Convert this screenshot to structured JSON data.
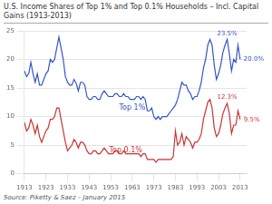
{
  "chart_data": {
    "type": "line",
    "title": "U.S. Income Shares of Top 1% and Top 0.1% Households – Incl. Capital Gains (1913-2013)",
    "x": [
      1913,
      1914,
      1915,
      1916,
      1917,
      1918,
      1919,
      1920,
      1921,
      1922,
      1923,
      1924,
      1925,
      1926,
      1927,
      1928,
      1929,
      1930,
      1931,
      1932,
      1933,
      1934,
      1935,
      1936,
      1937,
      1938,
      1939,
      1940,
      1941,
      1942,
      1943,
      1944,
      1945,
      1946,
      1947,
      1948,
      1949,
      1950,
      1951,
      1952,
      1953,
      1954,
      1955,
      1956,
      1957,
      1958,
      1959,
      1960,
      1961,
      1962,
      1963,
      1964,
      1965,
      1966,
      1967,
      1968,
      1969,
      1970,
      1971,
      1972,
      1973,
      1974,
      1975,
      1976,
      1977,
      1978,
      1979,
      1980,
      1981,
      1982,
      1983,
      1984,
      1985,
      1986,
      1987,
      1988,
      1989,
      1990,
      1991,
      1992,
      1993,
      1994,
      1995,
      1996,
      1997,
      1998,
      1999,
      2000,
      2001,
      2002,
      2003,
      2004,
      2005,
      2006,
      2007,
      2008,
      2009,
      2010,
      2011,
      2012,
      2013
    ],
    "series": [
      {
        "name": "Top 1%",
        "color": "#3355cc",
        "values": [
          18.0,
          17.0,
          17.5,
          19.5,
          17.5,
          16.0,
          17.5,
          15.5,
          15.5,
          16.5,
          17.5,
          18.0,
          20.0,
          19.5,
          20.0,
          22.0,
          23.9,
          22.0,
          20.0,
          17.0,
          16.0,
          15.5,
          15.5,
          16.5,
          15.8,
          14.5,
          16.0,
          16.0,
          15.5,
          13.5,
          13.0,
          13.0,
          13.5,
          13.5,
          13.0,
          13.0,
          14.0,
          14.5,
          14.0,
          13.5,
          13.5,
          13.5,
          14.0,
          14.0,
          13.5,
          13.5,
          14.0,
          13.5,
          13.5,
          13.0,
          13.0,
          13.0,
          13.5,
          13.5,
          13.0,
          13.5,
          13.0,
          11.0,
          11.0,
          11.5,
          10.0,
          9.5,
          10.0,
          9.5,
          10.0,
          10.0,
          10.0,
          10.5,
          11.0,
          11.5,
          12.0,
          13.0,
          14.5,
          16.0,
          15.5,
          15.5,
          14.5,
          14.0,
          13.0,
          13.5,
          13.5,
          14.5,
          16.0,
          18.5,
          20.0,
          22.5,
          23.5,
          22.5,
          19.0,
          16.5,
          17.5,
          19.0,
          21.2,
          22.5,
          23.5,
          21.0,
          18.0,
          20.0,
          19.5,
          22.5,
          20.0
        ],
        "value_labels": [
          null,
          null,
          null,
          null,
          null,
          null,
          null,
          null,
          null,
          null,
          null,
          null,
          null,
          null,
          null,
          null,
          null,
          null,
          null,
          null,
          null,
          null,
          null,
          null,
          null,
          null,
          null,
          null,
          null,
          null,
          null,
          null,
          null,
          null,
          null,
          null,
          null,
          null,
          null,
          null,
          null,
          null,
          null,
          null,
          null,
          null,
          null,
          null,
          null,
          null,
          null,
          null,
          null,
          null,
          null,
          null,
          null,
          null,
          null,
          null,
          null,
          null,
          null,
          null,
          null,
          null,
          null,
          null,
          null,
          null,
          null,
          null,
          null,
          null,
          null,
          null,
          null,
          null,
          null,
          null,
          null,
          null,
          null,
          null,
          null,
          null,
          null,
          null,
          null,
          null,
          null,
          null,
          null,
          null,
          "23.5%",
          null,
          null,
          null,
          null,
          null,
          "20.0%"
        ]
      },
      {
        "name": "Top 0.1%",
        "color": "#cc3333",
        "values": [
          9.0,
          7.5,
          8.0,
          9.5,
          8.5,
          7.0,
          8.5,
          6.5,
          5.5,
          6.5,
          7.5,
          8.0,
          9.5,
          9.5,
          10.0,
          11.5,
          11.5,
          9.5,
          7.5,
          5.5,
          4.0,
          4.5,
          5.0,
          6.0,
          5.5,
          4.5,
          5.5,
          5.5,
          5.0,
          4.0,
          3.5,
          3.5,
          4.0,
          4.0,
          3.5,
          3.5,
          4.0,
          4.5,
          4.0,
          3.5,
          3.5,
          3.5,
          4.0,
          4.0,
          3.5,
          3.5,
          4.0,
          3.5,
          3.5,
          3.5,
          3.5,
          3.5,
          3.5,
          3.5,
          3.0,
          3.5,
          3.5,
          2.5,
          2.5,
          2.5,
          2.5,
          2.0,
          2.5,
          2.5,
          2.5,
          2.5,
          2.5,
          2.5,
          2.5,
          3.0,
          7.5,
          5.0,
          5.5,
          7.0,
          5.0,
          6.5,
          6.0,
          5.5,
          4.5,
          5.5,
          5.5,
          6.0,
          7.0,
          9.5,
          11.0,
          12.5,
          13.0,
          11.5,
          8.0,
          6.5,
          7.0,
          8.5,
          10.5,
          11.5,
          12.3,
          10.5,
          7.0,
          8.5,
          8.5,
          11.0,
          9.5
        ],
        "value_labels": [
          null,
          null,
          null,
          null,
          null,
          null,
          null,
          null,
          null,
          null,
          null,
          null,
          null,
          null,
          null,
          null,
          null,
          null,
          null,
          null,
          null,
          null,
          null,
          null,
          null,
          null,
          null,
          null,
          null,
          null,
          null,
          null,
          null,
          null,
          null,
          null,
          null,
          null,
          null,
          null,
          null,
          null,
          null,
          null,
          null,
          null,
          null,
          null,
          null,
          null,
          null,
          null,
          null,
          null,
          null,
          null,
          null,
          null,
          null,
          null,
          null,
          null,
          null,
          null,
          null,
          null,
          null,
          null,
          null,
          null,
          null,
          null,
          null,
          null,
          null,
          null,
          null,
          null,
          null,
          null,
          null,
          null,
          null,
          null,
          null,
          null,
          null,
          null,
          null,
          null,
          null,
          null,
          null,
          null,
          "12.3%",
          null,
          null,
          null,
          null,
          null,
          "9.5%"
        ]
      }
    ],
    "annotations": [
      {
        "text": "Top 1%",
        "x": 1963,
        "y": 11.5,
        "color": "#3355cc"
      },
      {
        "text": "Top 0.1%",
        "x": 1960,
        "y": 4.0,
        "color": "#cc3333"
      },
      {
        "text": "Source:  Piketty & Saez – January 2015"
      }
    ],
    "xlim": [
      1913,
      2016
    ],
    "xticks": [
      1913,
      1923,
      1933,
      1943,
      1953,
      1963,
      1973,
      1983,
      1993,
      2003,
      2013
    ],
    "ylim": [
      0,
      25
    ],
    "yticks": [
      0,
      5,
      10,
      15,
      20,
      25
    ],
    "grid": "y"
  }
}
